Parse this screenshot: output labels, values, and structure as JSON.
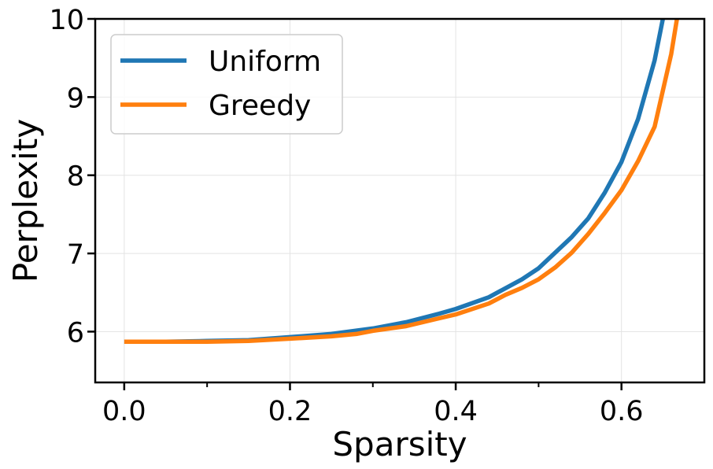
{
  "chart_data": {
    "type": "line",
    "title": "",
    "xlabel": "Sparsity",
    "ylabel": "Perplexity",
    "xlim": [
      -0.035,
      0.7
    ],
    "ylim": [
      5.35,
      10
    ],
    "xticks": [
      0.0,
      0.2,
      0.4,
      0.6
    ],
    "xtick_labels": [
      "0.0",
      "0.2",
      "0.4",
      "0.6"
    ],
    "xminor_ticks": [
      0.1,
      0.3,
      0.5
    ],
    "yticks": [
      6,
      7,
      8,
      9,
      10
    ],
    "ytick_labels": [
      "6",
      "7",
      "8",
      "9",
      "10"
    ],
    "grid": true,
    "legend_position": "top-left",
    "series": [
      {
        "name": "Uniform",
        "color": "#1f77b4",
        "x": [
          0.0,
          0.05,
          0.1,
          0.15,
          0.2,
          0.25,
          0.3,
          0.34,
          0.38,
          0.4,
          0.44,
          0.48,
          0.5,
          0.52,
          0.54,
          0.56,
          0.58,
          0.6,
          0.62,
          0.64,
          0.65
        ],
        "y": [
          5.87,
          5.87,
          5.88,
          5.89,
          5.93,
          5.97,
          6.04,
          6.12,
          6.23,
          6.29,
          6.44,
          6.67,
          6.81,
          7.01,
          7.21,
          7.45,
          7.78,
          8.17,
          8.72,
          9.47,
          10.0
        ]
      },
      {
        "name": "Greedy",
        "color": "#ff7f0e",
        "x": [
          0.0,
          0.05,
          0.1,
          0.15,
          0.2,
          0.25,
          0.28,
          0.3,
          0.34,
          0.38,
          0.4,
          0.44,
          0.46,
          0.48,
          0.5,
          0.52,
          0.54,
          0.56,
          0.58,
          0.6,
          0.62,
          0.64,
          0.66,
          0.667
        ],
        "y": [
          5.87,
          5.87,
          5.87,
          5.88,
          5.91,
          5.94,
          5.97,
          6.01,
          6.07,
          6.17,
          6.22,
          6.36,
          6.47,
          6.56,
          6.67,
          6.82,
          7.01,
          7.25,
          7.52,
          7.81,
          8.18,
          8.62,
          9.55,
          10.0
        ]
      }
    ]
  }
}
